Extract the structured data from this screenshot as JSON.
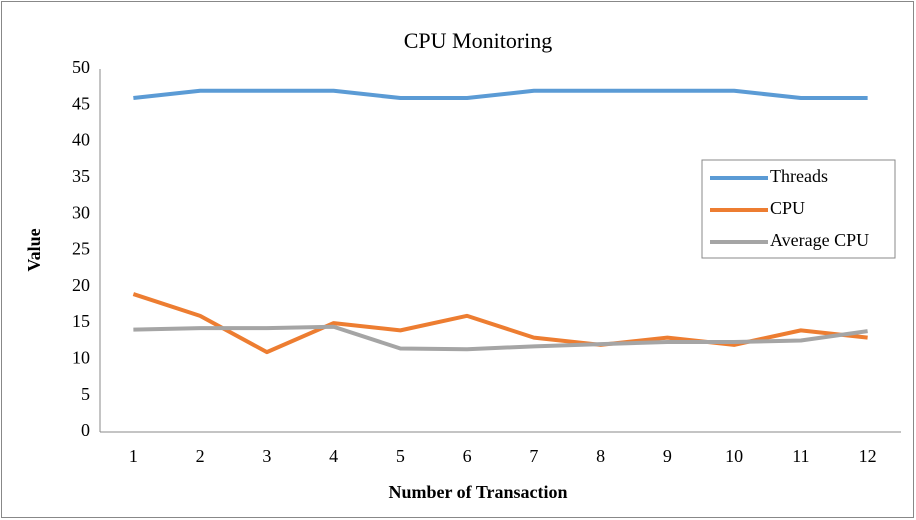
{
  "chart_data": {
    "type": "line",
    "title": "CPU Monitoring",
    "x_label": "Number of Transaction",
    "y_label": "Value",
    "categories": [
      "1",
      "2",
      "3",
      "4",
      "5",
      "6",
      "7",
      "8",
      "9",
      "10",
      "11",
      "12"
    ],
    "series": [
      {
        "name": "Threads",
        "color": "#5b9bd5",
        "values": [
          46,
          47,
          47,
          47,
          46,
          46,
          47,
          47,
          47,
          47,
          46,
          46
        ]
      },
      {
        "name": "CPU",
        "color": "#ed7d31",
        "values": [
          19,
          16,
          11,
          15,
          14,
          16,
          13,
          12,
          13,
          12,
          14,
          13
        ]
      },
      {
        "name": "Average CPU",
        "color": "#a5a5a5",
        "values": [
          14.1,
          14.3,
          14.3,
          14.5,
          11.5,
          11.4,
          11.8,
          12.1,
          12.4,
          12.4,
          12.6,
          13.9
        ]
      }
    ],
    "ylim": [
      0,
      50
    ],
    "yticks": [
      0,
      5,
      10,
      15,
      20,
      25,
      30,
      35,
      40,
      45,
      50
    ],
    "grid": false,
    "legend": "right"
  }
}
